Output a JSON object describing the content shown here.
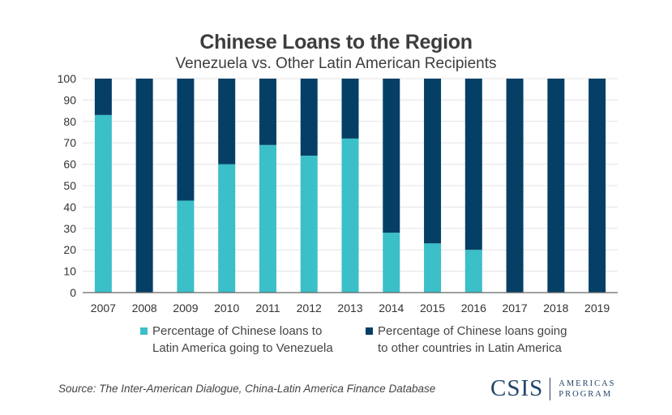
{
  "colors": {
    "venezuela": "#3bbfc9",
    "other": "#063f66",
    "grid": "#e3e3e3",
    "axis": "#666666",
    "tick_text": "#333333"
  },
  "chart_data": {
    "type": "bar",
    "stacked": true,
    "title": "Chinese Loans to the Region",
    "subtitle": "Venezuela vs. Other Latin American Recipients",
    "xlabel": "",
    "ylabel": "",
    "ylim": [
      0,
      100
    ],
    "yticks": [
      0,
      10,
      20,
      30,
      40,
      50,
      60,
      70,
      80,
      90,
      100
    ],
    "grid": true,
    "legend_position": "bottom",
    "categories": [
      "2007",
      "2008",
      "2009",
      "2010",
      "2011",
      "2012",
      "2013",
      "2014",
      "2015",
      "2016",
      "2017",
      "2018",
      "2019"
    ],
    "series": [
      {
        "name": "Percentage of Chinese loans to Latin America going to Venezuela",
        "legend_lines": [
          "Percentage of Chinese loans to",
          "Latin America going to Venezuela"
        ],
        "values": [
          83,
          0,
          43,
          60,
          69,
          64,
          72,
          28,
          23,
          20,
          0,
          0,
          0
        ]
      },
      {
        "name": "Percentage of Chinese loans going to other countries in Latin America",
        "legend_lines": [
          "Percentage of Chinese loans going",
          "to other countries in Latin America"
        ],
        "values": [
          17,
          100,
          57,
          40,
          31,
          36,
          28,
          72,
          77,
          80,
          100,
          100,
          100
        ]
      }
    ]
  },
  "footer": {
    "source": "Source: The Inter-American Dialogue, China-Latin America Finance Database"
  },
  "logo": {
    "main": "CSIS",
    "line1": "AMERICAS",
    "line2": "PROGRAM"
  }
}
